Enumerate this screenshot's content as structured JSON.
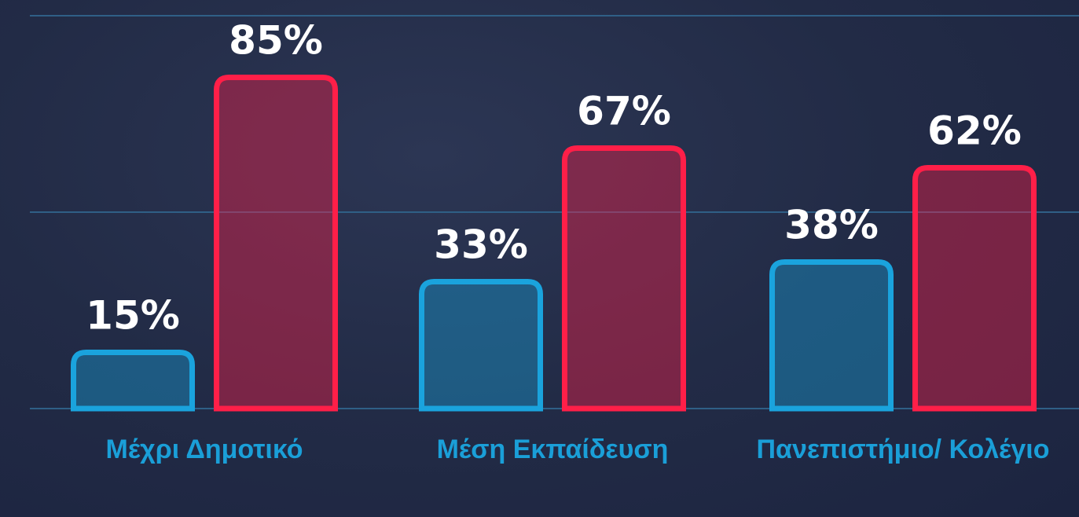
{
  "chart_data": {
    "type": "bar",
    "categories": [
      "Μέχρι Δημοτικό",
      "Μέση Εκπαίδευση",
      "Πανεπιστήμιο/ Κολέγιο"
    ],
    "series": [
      {
        "color": "#1aa3dd",
        "values": [
          15,
          33,
          38
        ],
        "value_labels": [
          "15%",
          "33%",
          "38%"
        ]
      },
      {
        "color": "#ff1f48",
        "values": [
          85,
          67,
          62
        ],
        "value_labels": [
          "85%",
          "67%",
          "62%"
        ]
      }
    ],
    "ylim": [
      0,
      100
    ],
    "yticks": [
      0,
      50,
      100
    ],
    "grid": true
  }
}
